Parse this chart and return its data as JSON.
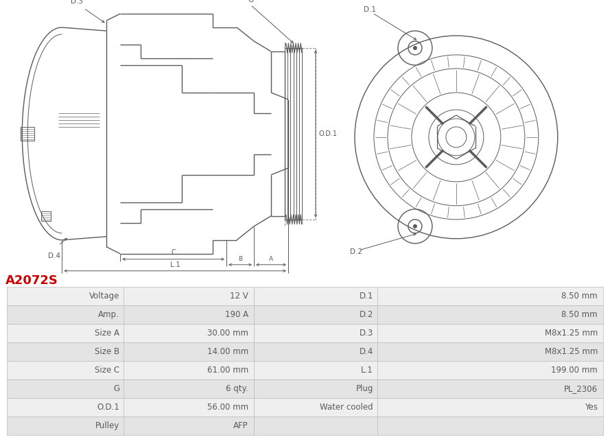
{
  "title": "A2072S",
  "title_color": "#cc0000",
  "bg_color": "#ffffff",
  "table_rows": [
    [
      "Voltage",
      "12 V",
      "D.1",
      "8.50 mm"
    ],
    [
      "Amp.",
      "190 A",
      "D.2",
      "8.50 mm"
    ],
    [
      "Size A",
      "30.00 mm",
      "D.3",
      "M8x1.25 mm"
    ],
    [
      "Size B",
      "14.00 mm",
      "D.4",
      "M8x1.25 mm"
    ],
    [
      "Size C",
      "61.00 mm",
      "L.1",
      "199.00 mm"
    ],
    [
      "G",
      "6 qty.",
      "Plug",
      "PL_2306"
    ],
    [
      "O.D.1",
      "56.00 mm",
      "Water cooled",
      "Yes"
    ],
    [
      "Pulley",
      "AFP",
      "",
      ""
    ]
  ],
  "draw_color": "#5a5a5a",
  "dim_color": "#5a5a5a",
  "row_bg_odd": "#efefef",
  "row_bg_even": "#e4e4e4",
  "line_color": "#cccccc",
  "text_color": "#5a5a5a",
  "title_fontsize": 13,
  "table_fontsize": 8.5
}
